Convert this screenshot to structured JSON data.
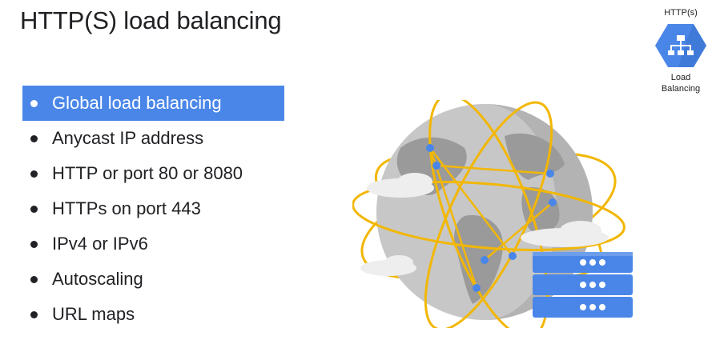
{
  "slide": {
    "title": "HTTP(S) load balancing"
  },
  "product_badge": {
    "top_label": "HTTP(s)",
    "name_line1": "Load",
    "name_line2": "Balancing",
    "icon": "load-balancing-hexagon-icon",
    "color": "#4a86e8"
  },
  "bullets": [
    {
      "text": "Global load balancing",
      "highlighted": true
    },
    {
      "text": "Anycast IP address",
      "highlighted": false
    },
    {
      "text": "HTTP or port 80 or 8080",
      "highlighted": false
    },
    {
      "text": "HTTPs on port 443",
      "highlighted": false
    },
    {
      "text": "IPv4 or IPv6",
      "highlighted": false
    },
    {
      "text": "Autoscaling",
      "highlighted": false
    },
    {
      "text": "URL maps",
      "highlighted": false
    }
  ],
  "illustration": {
    "icon": "globe-with-orbits-and-server-stack-illustration",
    "highlight_color": "#4a86e8",
    "orbit_color": "#f2b705"
  }
}
